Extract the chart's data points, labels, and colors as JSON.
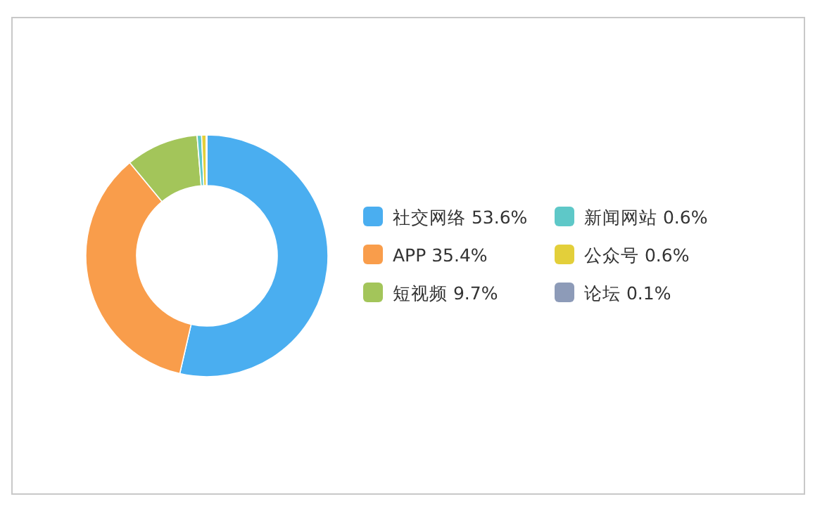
{
  "chart_data": {
    "type": "donut",
    "categories": [
      "社交网络",
      "APP",
      "短视频",
      "新闻网站",
      "公众号",
      "论坛"
    ],
    "values": [
      53.6,
      35.4,
      9.7,
      0.6,
      0.6,
      0.1
    ],
    "value_labels": [
      "53.6%",
      "35.4%",
      "9.7%",
      "0.6%",
      "0.6%",
      "0.1%"
    ],
    "colors": [
      "#4aaef0",
      "#f99d4b",
      "#a3c55a",
      "#5ec8c8",
      "#e3cf3a",
      "#8d9bb8"
    ],
    "legend": "right"
  }
}
